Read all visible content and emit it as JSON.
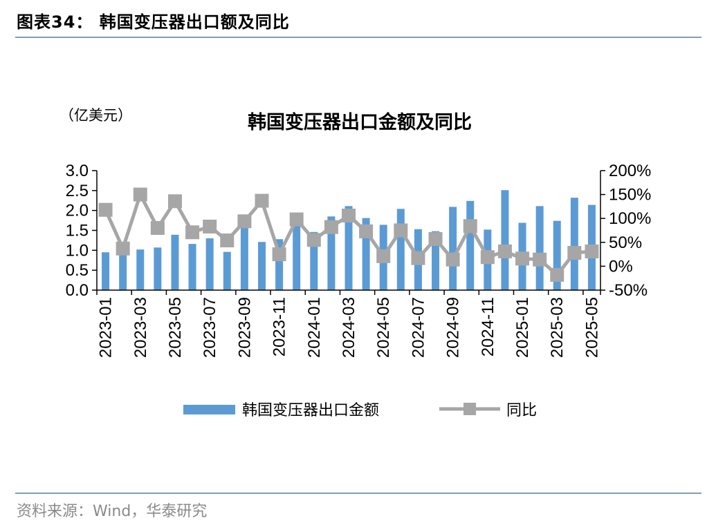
{
  "figure": {
    "title": "图表34：  韩国变压器出口额及同比",
    "source": "资料来源：Wind，华泰研究"
  },
  "colors": {
    "bar": "#5b9bd5",
    "line": "#a6a6a6",
    "rule": "#7f9db9"
  },
  "chart_data": {
    "type": "bar",
    "title": "韩国变压器出口金额及同比",
    "y_unit": "（亿美元）",
    "x": [
      "2023-01",
      "2023-02",
      "2023-03",
      "2023-04",
      "2023-05",
      "2023-06",
      "2023-07",
      "2023-08",
      "2023-09",
      "2023-10",
      "2023-11",
      "2023-12",
      "2024-01",
      "2024-02",
      "2024-03",
      "2024-04",
      "2024-05",
      "2024-06",
      "2024-07",
      "2024-08",
      "2024-09",
      "2024-10",
      "2024-11",
      "2024-12",
      "2025-01",
      "2025-02",
      "2025-03",
      "2025-04",
      "2025-05"
    ],
    "x_tick_labels": [
      "2023-01",
      "2023-03",
      "2023-05",
      "2023-07",
      "2023-09",
      "2023-11",
      "2024-01",
      "2024-03",
      "2024-05",
      "2024-07",
      "2024-09",
      "2024-11",
      "2025-01",
      "2025-03",
      "2025-05"
    ],
    "series": [
      {
        "name": "韩国变压器出口金额",
        "type": "bar",
        "axis": "left",
        "values": [
          0.95,
          0.98,
          1.02,
          1.07,
          1.39,
          1.16,
          1.3,
          0.96,
          1.85,
          1.21,
          1.28,
          1.72,
          1.46,
          1.85,
          2.11,
          1.81,
          1.64,
          2.04,
          1.53,
          1.48,
          2.09,
          2.24,
          1.52,
          2.51,
          1.69,
          2.11,
          1.74,
          2.32,
          2.14
        ]
      },
      {
        "name": "同比",
        "type": "line",
        "axis": "right",
        "values": [
          118,
          37,
          150,
          80,
          136,
          71,
          83,
          54,
          94,
          137,
          25,
          98,
          55,
          82,
          106,
          73,
          21,
          75,
          17,
          57,
          14,
          84,
          19,
          31,
          16,
          14,
          -18,
          28,
          31
        ]
      }
    ],
    "y_left": {
      "min": 0,
      "max": 3.0,
      "ticks": [
        "3.0",
        "2.5",
        "2.0",
        "1.5",
        "1.0",
        "0.5",
        "0.0"
      ]
    },
    "y_right": {
      "min": -50,
      "max": 200,
      "ticks": [
        "200%",
        "150%",
        "100%",
        "50%",
        "0%",
        "-50%"
      ]
    },
    "legend_position": "bottom",
    "grid": false
  }
}
